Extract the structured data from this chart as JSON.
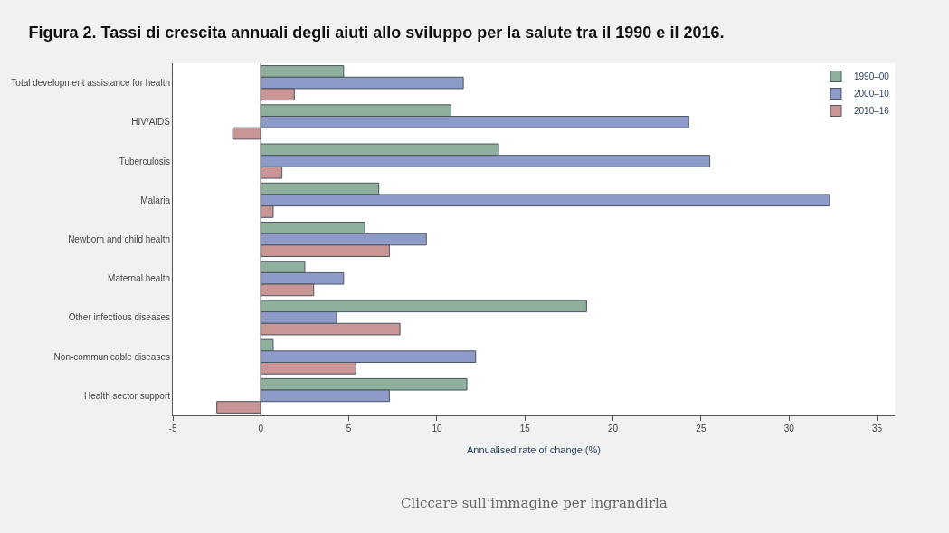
{
  "chart_data": {
    "type": "bar",
    "orientation": "horizontal",
    "title": "Figura 2. Tassi di crescita annuali degli aiuti allo sviluppo per la salute tra il 1990 e il 2016.",
    "xlabel": "Annualised rate of change (%)",
    "categories": [
      "Total development assistance for health",
      "HIV/AIDS",
      "Tuberculosis",
      "Malaria",
      "Newborn and child health",
      "Maternal health",
      "Other infectious diseases",
      "Non-communicable diseases",
      "Health sector support"
    ],
    "series": [
      {
        "name": "1990–00",
        "color": "#8fb09c",
        "values": [
          4.7,
          10.8,
          13.5,
          6.7,
          5.9,
          2.5,
          18.5,
          0.7,
          11.7
        ]
      },
      {
        "name": "2000–10",
        "color": "#8e9bc9",
        "values": [
          11.5,
          24.3,
          25.5,
          32.3,
          9.4,
          4.7,
          4.3,
          12.2,
          7.3
        ]
      },
      {
        "name": "2010–16",
        "color": "#c99595",
        "values": [
          1.9,
          -1.6,
          1.2,
          0.7,
          7.3,
          3.0,
          7.9,
          5.4,
          -2.5
        ]
      }
    ],
    "xlim": [
      -5,
      36
    ],
    "xticks": [
      -5,
      0,
      5,
      10,
      15,
      20,
      25,
      30,
      35
    ],
    "legend": "top right",
    "ref_lines": [
      {
        "axis": "x",
        "value": 0,
        "color": "#555555"
      }
    ],
    "annotations": [
      "Cliccare sull’immagine per ingrandirla"
    ]
  }
}
